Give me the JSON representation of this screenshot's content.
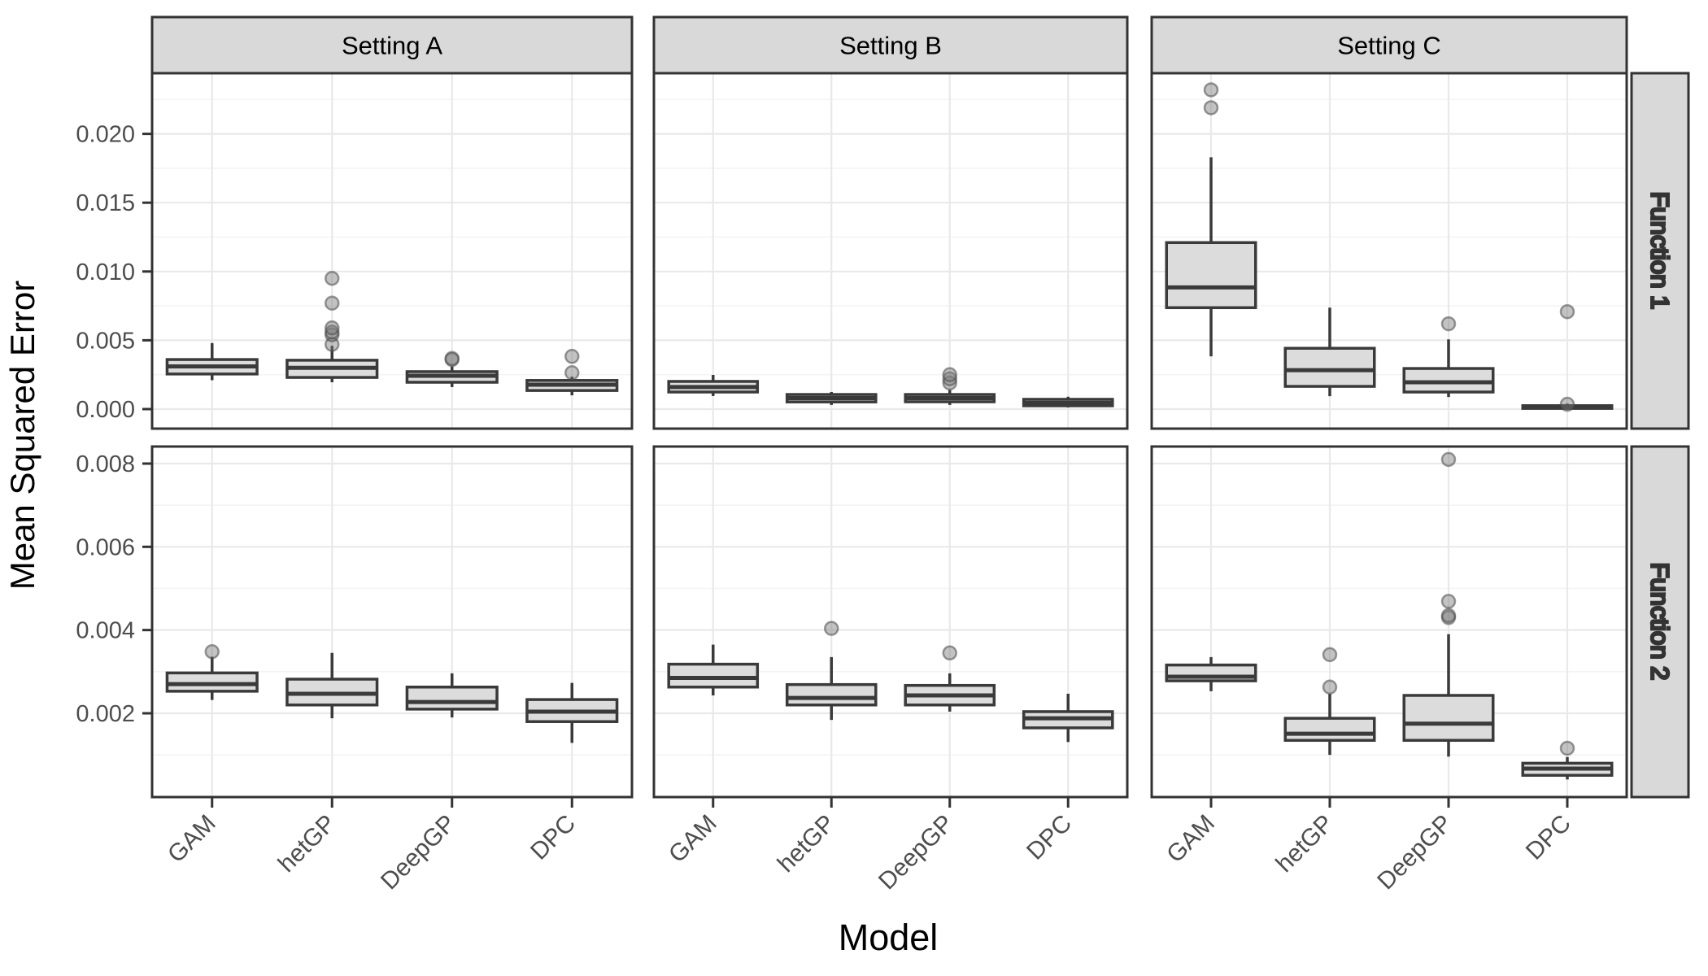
{
  "chart_data": {
    "type": "boxplot",
    "title": "",
    "xlabel": "Model",
    "ylabel": "Mean Squared Error",
    "legend": "none",
    "grid": true,
    "x_categories": [
      "GAM",
      "hetGP",
      "DeepGP",
      "DPC"
    ],
    "col_facets": [
      "Setting A",
      "Setting B",
      "Setting C"
    ],
    "row_facets": [
      {
        "label": "Function 1",
        "ylim": [
          -0.00142,
          0.02441
        ],
        "ticks": [
          0,
          0.005,
          0.01,
          0.015,
          0.02
        ],
        "tick_labels": [
          "0.000",
          "0.005",
          "0.010",
          "0.015",
          "0.020"
        ],
        "minor_ticks": [
          0.0025,
          0.0075,
          0.0125,
          0.0175,
          0.0225
        ]
      },
      {
        "label": "Function 2",
        "ylim": [
          -1.3e-05,
          0.00841
        ],
        "ticks": [
          0.002,
          0.004,
          0.006,
          0.008
        ],
        "tick_labels": [
          "0.002",
          "0.004",
          "0.006",
          "0.008"
        ],
        "minor_ticks": [
          0.001,
          0.003,
          0.005,
          0.007
        ]
      }
    ],
    "panels": [
      {
        "row": 0,
        "col": 0,
        "boxes": [
          {
            "model": "GAM",
            "whislo": 0.0021,
            "q1": 0.00255,
            "med": 0.0031,
            "q3": 0.0036,
            "whishi": 0.0048,
            "outliers": []
          },
          {
            "model": "hetGP",
            "whislo": 0.00195,
            "q1": 0.0023,
            "med": 0.003,
            "q3": 0.00355,
            "whishi": 0.0046,
            "outliers": [
              0.0047,
              0.0054,
              0.0056,
              0.0059,
              0.0077,
              0.0095
            ]
          },
          {
            "model": "DeepGP",
            "whislo": 0.0016,
            "q1": 0.00195,
            "med": 0.00242,
            "q3": 0.00272,
            "whishi": 0.0031,
            "outliers": [
              0.0036,
              0.00368
            ]
          },
          {
            "model": "DPC",
            "whislo": 0.001,
            "q1": 0.00135,
            "med": 0.00177,
            "q3": 0.00208,
            "whishi": 0.00236,
            "outliers": [
              0.00264,
              0.00383
            ]
          }
        ]
      },
      {
        "row": 0,
        "col": 1,
        "boxes": [
          {
            "model": "GAM",
            "whislo": 0.00095,
            "q1": 0.00124,
            "med": 0.0016,
            "q3": 0.00201,
            "whishi": 0.00248,
            "outliers": []
          },
          {
            "model": "hetGP",
            "whislo": 0.0003,
            "q1": 0.00052,
            "med": 0.0008,
            "q3": 0.00106,
            "whishi": 0.00124,
            "outliers": []
          },
          {
            "model": "DeepGP",
            "whislo": 0.0003,
            "q1": 0.00053,
            "med": 0.0008,
            "q3": 0.00106,
            "whishi": 0.0014,
            "outliers": [
              0.0019,
              0.0022,
              0.0025
            ]
          },
          {
            "model": "DPC",
            "whislo": 0.00012,
            "q1": 0.00024,
            "med": 0.00045,
            "q3": 0.00071,
            "whishi": 0.0009,
            "outliers": []
          }
        ]
      },
      {
        "row": 0,
        "col": 2,
        "boxes": [
          {
            "model": "GAM",
            "whislo": 0.00383,
            "q1": 0.00737,
            "med": 0.00884,
            "q3": 0.0121,
            "whishi": 0.0183,
            "outliers": [
              0.0219,
              0.0232
            ]
          },
          {
            "model": "hetGP",
            "whislo": 0.00094,
            "q1": 0.00165,
            "med": 0.00283,
            "q3": 0.00442,
            "whishi": 0.00737,
            "outliers": []
          },
          {
            "model": "DeepGP",
            "whislo": 0.00088,
            "q1": 0.00124,
            "med": 0.00195,
            "q3": 0.00295,
            "whishi": 0.00507,
            "outliers": [
              0.0062
            ]
          },
          {
            "model": "DPC",
            "whislo": 2e-05,
            "q1": 5e-05,
            "med": 0.00013,
            "q3": 0.00025,
            "whishi": 0.0004,
            "outliers": [
              0.00035,
              0.00708
            ]
          }
        ]
      },
      {
        "row": 1,
        "col": 0,
        "boxes": [
          {
            "model": "GAM",
            "whislo": 0.00232,
            "q1": 0.00253,
            "med": 0.0027,
            "q3": 0.00297,
            "whishi": 0.00336,
            "outliers": [
              0.00348
            ]
          },
          {
            "model": "hetGP",
            "whislo": 0.00188,
            "q1": 0.0022,
            "med": 0.00247,
            "q3": 0.00282,
            "whishi": 0.00345,
            "outliers": []
          },
          {
            "model": "DeepGP",
            "whislo": 0.0019,
            "q1": 0.0021,
            "med": 0.00227,
            "q3": 0.00263,
            "whishi": 0.00296,
            "outliers": []
          },
          {
            "model": "DPC",
            "whislo": 0.00129,
            "q1": 0.0018,
            "med": 0.00204,
            "q3": 0.00233,
            "whishi": 0.00273,
            "outliers": []
          }
        ]
      },
      {
        "row": 1,
        "col": 1,
        "boxes": [
          {
            "model": "GAM",
            "whislo": 0.00243,
            "q1": 0.00263,
            "med": 0.00285,
            "q3": 0.00318,
            "whishi": 0.00365,
            "outliers": []
          },
          {
            "model": "hetGP",
            "whislo": 0.00184,
            "q1": 0.0022,
            "med": 0.00237,
            "q3": 0.00269,
            "whishi": 0.00335,
            "outliers": [
              0.00404
            ]
          },
          {
            "model": "DeepGP",
            "whislo": 0.00204,
            "q1": 0.0022,
            "med": 0.00243,
            "q3": 0.00267,
            "whishi": 0.00296,
            "outliers": [
              0.00345
            ]
          },
          {
            "model": "DPC",
            "whislo": 0.00131,
            "q1": 0.00165,
            "med": 0.00188,
            "q3": 0.00204,
            "whishi": 0.00247,
            "outliers": []
          }
        ]
      },
      {
        "row": 1,
        "col": 2,
        "boxes": [
          {
            "model": "GAM",
            "whislo": 0.00253,
            "q1": 0.00278,
            "med": 0.00288,
            "q3": 0.00316,
            "whishi": 0.00335,
            "outliers": []
          },
          {
            "model": "hetGP",
            "whislo": 0.001,
            "q1": 0.00135,
            "med": 0.00151,
            "q3": 0.00188,
            "whishi": 0.00247,
            "outliers": [
              0.00263,
              0.00341
            ]
          },
          {
            "model": "DeepGP",
            "whislo": 0.00096,
            "q1": 0.00135,
            "med": 0.00175,
            "q3": 0.00243,
            "whishi": 0.0039,
            "outliers": [
              0.0043,
              0.00435,
              0.00469,
              0.0081
            ]
          },
          {
            "model": "DPC",
            "whislo": 0.00041,
            "q1": 0.00051,
            "med": 0.00067,
            "q3": 0.0008,
            "whishi": 0.00095,
            "outliers": [
              0.00116
            ]
          }
        ]
      }
    ],
    "style": {
      "strip_bg": "#d9d9d9",
      "panel_bg": "#ffffff",
      "panel_border": "#333333",
      "grid_major": "#e9e9e9",
      "grid_minor": "#f4f4f4",
      "box_line": "#3a3a3a",
      "box_fill": "#dcdcdc",
      "outlier_fill": "#7a7a7a",
      "outlier_stroke": "#4a4a4a",
      "axis_text": "#4d4d4d",
      "title_text": "#000000"
    }
  }
}
